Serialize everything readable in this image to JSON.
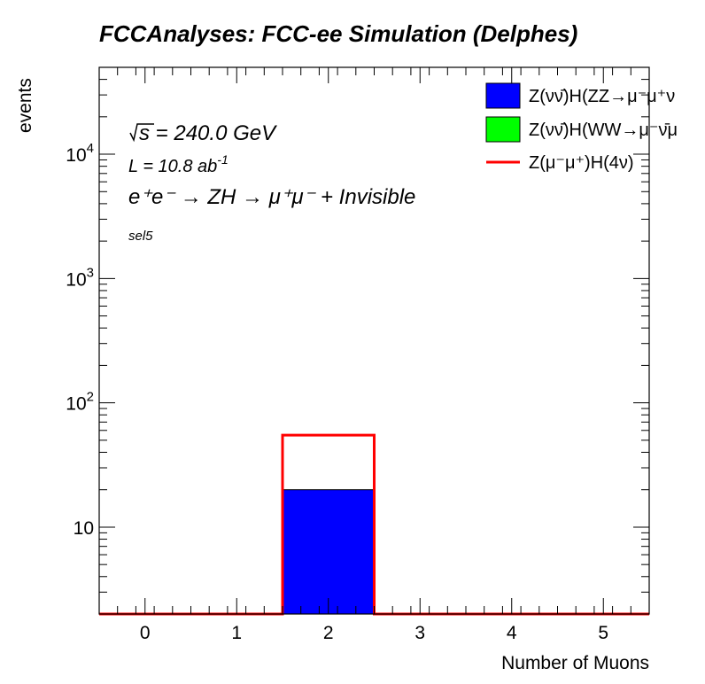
{
  "chart_data": {
    "type": "bar",
    "title": "FCCAnalyses: FCC-ee Simulation (Delphes)",
    "xlabel": "Number of Muons",
    "ylabel": "events",
    "xlim": [
      -0.5,
      5.5
    ],
    "ylim": [
      2,
      50000
    ],
    "log_y": true,
    "grid": false,
    "x_ticks": [
      0,
      1,
      2,
      3,
      4,
      5
    ],
    "y_ticks": [
      {
        "value": 10,
        "base": "10",
        "exp": ""
      },
      {
        "value": 100,
        "base": "10",
        "exp": "2"
      },
      {
        "value": 1000,
        "base": "10",
        "exp": "3"
      },
      {
        "value": 10000,
        "base": "10",
        "exp": "4"
      }
    ],
    "bin_edges": [
      -0.5,
      0.5,
      1.5,
      2.5,
      3.5,
      4.5,
      5.5
    ],
    "series": [
      {
        "name": "Z(νν̄)H(ZZ→μ⁻μ⁺ν",
        "style": "filled",
        "color": "#0000ff",
        "values": [
          0,
          0,
          20,
          0,
          0,
          0
        ]
      },
      {
        "name": "Z(νν̄)H(WW→μ⁻ν̄μ",
        "style": "filled",
        "color": "#00ff00",
        "values": [
          0,
          0,
          0,
          0,
          0,
          0
        ]
      },
      {
        "name": "Z(μ⁻μ⁺)H(4ν)",
        "style": "line",
        "color": "#ff0000",
        "values": [
          0,
          0,
          55,
          0,
          0,
          0
        ]
      }
    ],
    "legend_placement": "top-right",
    "annotations": {
      "sqrt_s": "s",
      "energy": " = 240.0 GeV",
      "lumi": "L = 10.8 ab",
      "lumi_exp": "-1",
      "process": "e⁺e⁻ → ZH → μ⁺μ⁻ + Invisible",
      "selection": "sel5"
    }
  }
}
